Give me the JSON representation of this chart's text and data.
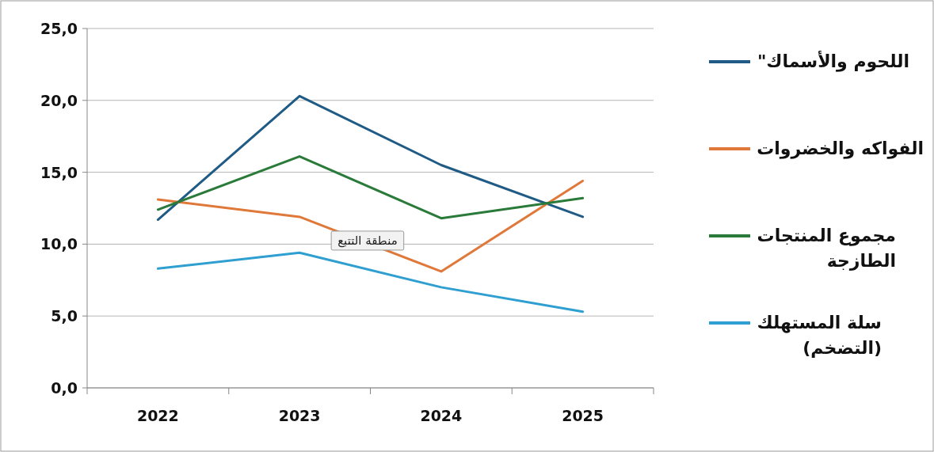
{
  "chart_data": {
    "type": "line",
    "categories": [
      "2022",
      "2023",
      "2024",
      "2025"
    ],
    "series": [
      {
        "name": "اللحوم والأسماك\"",
        "color": "#1f5b85",
        "values": [
          11.7,
          20.3,
          15.5,
          11.9
        ]
      },
      {
        "name": "الفواكه والخضروات",
        "color": "#e0783a",
        "values": [
          13.1,
          11.9,
          8.1,
          14.4
        ]
      },
      {
        "name": "مجموع المنتجات الطازجة",
        "color": "#2a7a3a",
        "values": [
          12.4,
          16.1,
          11.8,
          13.2
        ]
      },
      {
        "name": "سلة المستهلك (التضخم)",
        "color": "#2e9fd0",
        "values": [
          8.3,
          9.4,
          7.0,
          5.3
        ]
      }
    ],
    "ylim": [
      0,
      25
    ],
    "yticks": [
      {
        "value": 0,
        "label": "0,0"
      },
      {
        "value": 5,
        "label": "5,0"
      },
      {
        "value": 10,
        "label": "10,0"
      },
      {
        "value": 15,
        "label": "15,0"
      },
      {
        "value": 20,
        "label": "20,0"
      },
      {
        "value": 25,
        "label": "25,0"
      }
    ],
    "grid": "y",
    "legend": "right",
    "marker": "none",
    "line_style": "solid",
    "annotations": [
      "منطقة التتبع"
    ]
  }
}
